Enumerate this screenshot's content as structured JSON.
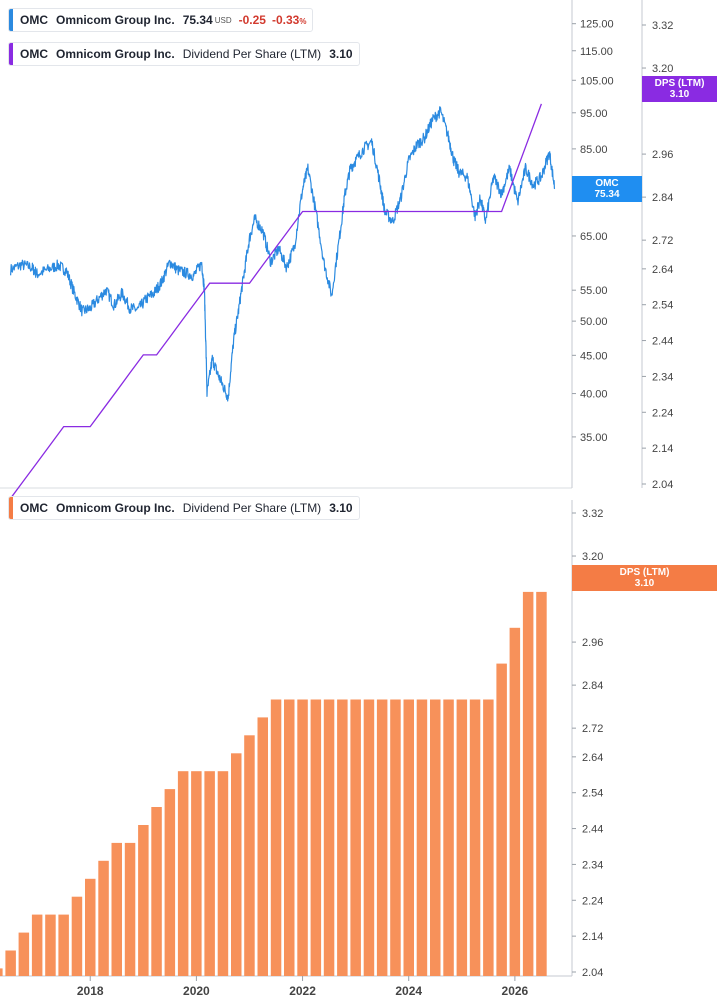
{
  "colors": {
    "price_line": "#2b8ae0",
    "dps_line": "#8a2be2",
    "dps_bars": "#f7915a",
    "price_tag": "#1f8ef1",
    "dps_tag_top": "#8a2be2",
    "dps_tag_bottom": "#f47c45",
    "change_negative": "#d23a2e"
  },
  "legend_price": {
    "ticker": "OMC",
    "name": "Omnicom Group Inc.",
    "value": "75.34",
    "currency": "USD",
    "change": "-0.25",
    "change_pct": "-0.33",
    "pct_sign": "%"
  },
  "legend_dps_top": {
    "ticker": "OMC",
    "name": "Omnicom Group Inc.",
    "metric": "Dividend Per Share (LTM)",
    "value": "3.10"
  },
  "legend_dps_bottom": {
    "ticker": "OMC",
    "name": "Omnicom Group Inc.",
    "metric": "Dividend Per Share (LTM)",
    "value": "3.10"
  },
  "tag_price": {
    "label": "OMC",
    "value": "75.34"
  },
  "tag_dps_top": {
    "label": "DPS (LTM)",
    "value": "3.10"
  },
  "tag_dps_bottom": {
    "label": "DPS (LTM)",
    "value": "3.10"
  },
  "chart_data": [
    {
      "type": "line",
      "title": "",
      "series": [
        {
          "name": "Omnicom Group Inc.",
          "axis": "price",
          "scale": "log",
          "x": [
            2016.5,
            2016.7,
            2016.9,
            2017.0,
            2017.2,
            2017.4,
            2017.55,
            2017.7,
            2017.85,
            2018.0,
            2018.15,
            2018.3,
            2018.45,
            2018.6,
            2018.75,
            2018.9,
            2019.05,
            2019.2,
            2019.35,
            2019.5,
            2019.65,
            2019.8,
            2019.95,
            2020.1,
            2020.15,
            2020.2,
            2020.3,
            2020.4,
            2020.5,
            2020.6,
            2020.7,
            2020.8,
            2020.9,
            2021.0,
            2021.1,
            2021.25,
            2021.4,
            2021.55,
            2021.7,
            2021.85,
            2022.0,
            2022.1,
            2022.25,
            2022.4,
            2022.55,
            2022.7,
            2022.8,
            2022.9,
            2023.0,
            2023.15,
            2023.3,
            2023.45,
            2023.55,
            2023.7,
            2023.85,
            2024.0,
            2024.15,
            2024.3,
            2024.45,
            2024.6,
            2024.75,
            2024.85,
            2024.95,
            2025.1,
            2025.25,
            2025.35,
            2025.45,
            2025.6,
            2025.75,
            2025.9,
            2026.05,
            2026.2,
            2026.35,
            2026.5,
            2026.65,
            2026.75
          ],
          "y": [
            58.6,
            59.5,
            59.0,
            57.8,
            58.6,
            59.4,
            58.4,
            54.5,
            51.5,
            52.0,
            53.5,
            55.0,
            52.5,
            54.5,
            52.0,
            51.8,
            53.5,
            54.5,
            56.5,
            60.0,
            58.5,
            58.0,
            57.5,
            59.8,
            55.0,
            40.0,
            44.5,
            42.5,
            41.0,
            39.5,
            47.0,
            52.0,
            58.0,
            64.5,
            68.5,
            66.0,
            60.0,
            62.5,
            59.0,
            63.0,
            75.0,
            80.0,
            70.0,
            60.0,
            54.0,
            65.0,
            74.0,
            80.0,
            82.0,
            85.0,
            87.0,
            77.0,
            70.0,
            68.0,
            73.0,
            82.0,
            86.0,
            88.0,
            93.0,
            95.5,
            88.0,
            82.0,
            79.0,
            78.0,
            69.0,
            73.0,
            68.0,
            78.0,
            74.0,
            80.0,
            72.0,
            80.0,
            76.0,
            78.0,
            84.0,
            75.34
          ]
        },
        {
          "name": "Dividend Per Share (LTM)",
          "axis": "dps",
          "x": [
            2016.5,
            2016.75,
            2017.0,
            2017.25,
            2017.5,
            2017.75,
            2018.0,
            2018.25,
            2018.5,
            2018.75,
            2019.0,
            2019.25,
            2019.5,
            2019.75,
            2020.0,
            2020.25,
            2020.5,
            2020.75,
            2021.0,
            2021.25,
            2021.5,
            2021.75,
            2022.0,
            2022.25,
            2022.5,
            2022.75,
            2023.0,
            2023.25,
            2023.5,
            2023.75,
            2024.0,
            2024.25,
            2024.5,
            2024.75,
            2025.0,
            2025.25,
            2025.5,
            2025.75,
            2026.0,
            2026.25,
            2026.5
          ],
          "y": [
            2.0,
            2.05,
            2.1,
            2.15,
            2.2,
            2.2,
            2.2,
            2.25,
            2.3,
            2.35,
            2.4,
            2.4,
            2.45,
            2.5,
            2.55,
            2.6,
            2.6,
            2.6,
            2.6,
            2.65,
            2.7,
            2.75,
            2.8,
            2.8,
            2.8,
            2.8,
            2.8,
            2.8,
            2.8,
            2.8,
            2.8,
            2.8,
            2.8,
            2.8,
            2.8,
            2.8,
            2.8,
            2.8,
            2.9,
            3.0,
            3.1
          ]
        }
      ],
      "xlim": [
        2016.3,
        2026.85
      ],
      "price_axis": {
        "ticks": [
          125.0,
          115.0,
          105.0,
          95.0,
          85.0,
          75.0,
          65.0,
          55.0,
          50.0,
          45.0,
          40.0,
          35.0
        ],
        "ylim": [
          32,
          132
        ]
      },
      "dps_axis": {
        "ticks": [
          3.32,
          3.2,
          2.96,
          2.84,
          2.72,
          2.64,
          2.54,
          2.44,
          2.34,
          2.24,
          2.14,
          2.04
        ],
        "ylim": [
          2.04,
          3.4
        ]
      }
    },
    {
      "type": "bar",
      "title": "",
      "series": [
        {
          "name": "Dividend Per Share (LTM)",
          "x": [
            2016.25,
            2016.5,
            2016.75,
            2017.0,
            2017.25,
            2017.5,
            2017.75,
            2018.0,
            2018.25,
            2018.5,
            2018.75,
            2019.0,
            2019.25,
            2019.5,
            2019.75,
            2020.0,
            2020.25,
            2020.5,
            2020.75,
            2021.0,
            2021.25,
            2021.5,
            2021.75,
            2022.0,
            2022.25,
            2022.5,
            2022.75,
            2023.0,
            2023.25,
            2023.5,
            2023.75,
            2024.0,
            2024.25,
            2024.5,
            2024.75,
            2025.0,
            2025.25,
            2025.5,
            2025.75,
            2026.0,
            2026.25,
            2026.5
          ],
          "values": [
            2.05,
            2.1,
            2.15,
            2.2,
            2.2,
            2.2,
            2.25,
            2.3,
            2.35,
            2.4,
            2.4,
            2.45,
            2.5,
            2.55,
            2.6,
            2.6,
            2.6,
            2.6,
            2.65,
            2.7,
            2.75,
            2.8,
            2.8,
            2.8,
            2.8,
            2.8,
            2.8,
            2.8,
            2.8,
            2.8,
            2.8,
            2.8,
            2.8,
            2.8,
            2.8,
            2.8,
            2.8,
            2.8,
            2.9,
            3.0,
            3.1,
            3.1
          ]
        }
      ],
      "x_ticks": [
        "2018",
        "2020",
        "2022",
        "2024",
        "2026"
      ],
      "x_tick_values": [
        2018,
        2020,
        2022,
        2024,
        2026
      ],
      "xlim": [
        2016.3,
        2026.85
      ],
      "y_ticks": [
        3.32,
        3.2,
        2.96,
        2.84,
        2.72,
        2.64,
        2.54,
        2.44,
        2.34,
        2.24,
        2.14,
        2.04
      ],
      "ylim": [
        2.04,
        3.36
      ],
      "grid": false
    }
  ]
}
